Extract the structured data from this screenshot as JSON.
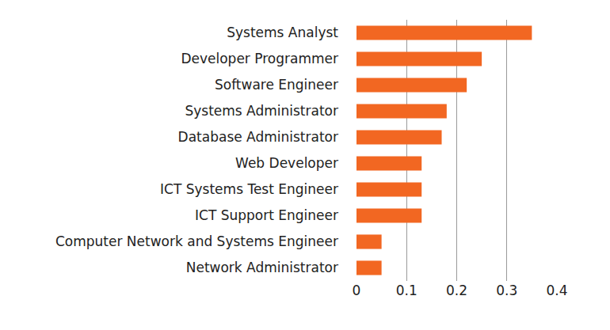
{
  "chart_data": {
    "type": "bar",
    "orientation": "horizontal",
    "categories": [
      "Systems Analyst",
      "Developer Programmer",
      "Software Engineer",
      "Systems Administrator",
      "Database Administrator",
      "Web Developer",
      "ICT Systems Test Engineer",
      "ICT Support Engineer",
      "Computer Network and Systems Engineer",
      "Network Administrator"
    ],
    "values": [
      0.35,
      0.25,
      0.22,
      0.18,
      0.17,
      0.13,
      0.13,
      0.13,
      0.05,
      0.05
    ],
    "color": "#f26722",
    "xlim": [
      0,
      0.4
    ],
    "xticks": [
      0,
      0.1,
      0.2,
      0.3,
      0.4
    ],
    "grid": true
  }
}
